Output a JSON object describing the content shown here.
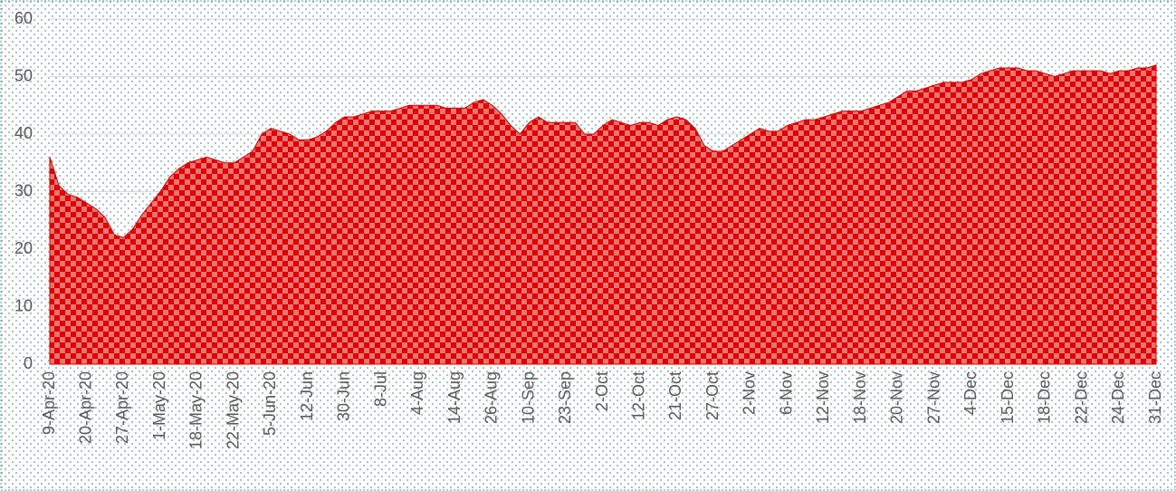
{
  "chart_data": {
    "type": "area",
    "categories": [
      "9-Apr-20",
      null,
      null,
      null,
      "20-Apr-20",
      null,
      null,
      null,
      "27-Apr-20",
      null,
      null,
      null,
      "1-May-20",
      null,
      null,
      null,
      "18-May-20",
      null,
      null,
      null,
      "22-May-20",
      null,
      null,
      null,
      "5-Jun-20",
      null,
      null,
      null,
      "12-Jun",
      null,
      null,
      null,
      "30-Jun",
      null,
      null,
      null,
      "8-Jul",
      null,
      null,
      null,
      "4-Aug",
      null,
      null,
      null,
      "14-Aug",
      null,
      null,
      null,
      "26-Aug",
      null,
      null,
      null,
      "10-Sep",
      null,
      null,
      null,
      "23-Sep",
      null,
      null,
      null,
      "2-Oct",
      null,
      null,
      null,
      "12-Oct",
      null,
      null,
      null,
      "21-Oct",
      null,
      null,
      null,
      "27-Oct",
      null,
      null,
      null,
      "2-Nov",
      null,
      null,
      null,
      "6-Nov",
      null,
      null,
      null,
      "12-Nov",
      null,
      null,
      null,
      "18-Nov",
      null,
      null,
      null,
      "20-Nov",
      null,
      null,
      null,
      "27-Nov",
      null,
      null,
      null,
      "4-Dec",
      null,
      null,
      null,
      "15-Dec",
      null,
      null,
      null,
      "18-Dec",
      null,
      null,
      null,
      "22-Dec",
      null,
      null,
      null,
      "24-Dec",
      null,
      null,
      null,
      "31-Dec"
    ],
    "values": [
      36,
      31,
      29.5,
      29,
      28,
      27,
      25.5,
      22.5,
      22,
      23.5,
      26,
      28,
      30,
      32.5,
      34,
      35,
      35.5,
      36,
      35.5,
      35,
      35,
      36,
      37,
      40,
      41,
      40.5,
      40,
      39,
      39,
      39.5,
      40.5,
      42,
      43,
      43,
      43.5,
      44,
      44,
      44,
      44.5,
      45,
      45,
      45,
      45,
      44.5,
      44.5,
      44.5,
      45.5,
      46,
      45,
      43.5,
      41.5,
      40,
      42,
      43,
      42,
      42,
      42,
      42,
      40,
      40,
      41.5,
      42.5,
      42,
      41.5,
      42,
      42,
      41.5,
      42.5,
      43,
      42.5,
      41,
      38,
      37,
      37,
      38,
      39,
      40,
      41,
      40.5,
      40.5,
      41.5,
      42,
      42.5,
      42.5,
      43,
      43.5,
      44,
      44,
      44,
      44.5,
      45,
      45.5,
      46.5,
      47.5,
      47.5,
      48,
      48.5,
      49,
      49,
      49,
      49.5,
      50.5,
      51,
      51.5,
      51.5,
      51.5,
      51,
      51,
      50.5,
      50,
      50.5,
      51,
      51,
      51,
      51,
      50.5,
      51,
      51,
      51.5,
      51.5,
      52
    ],
    "color": "#e00000",
    "ylim": [
      0,
      60
    ],
    "yticks": [
      0,
      10,
      20,
      30,
      40,
      50,
      60
    ],
    "grid": true
  }
}
